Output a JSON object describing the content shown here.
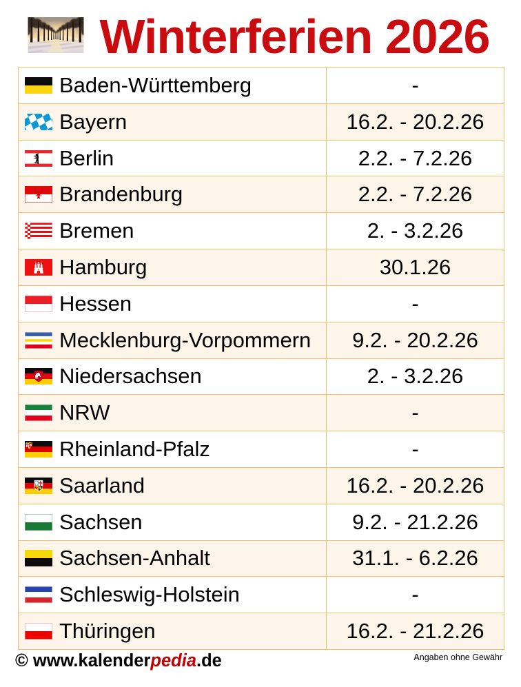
{
  "header": {
    "title": "Winterferien 2026",
    "photo_icon": "winter-tree-avenue-photo"
  },
  "theme": {
    "title_color": "#c90c10",
    "border_color": "#fbbf6d",
    "row_alt_color": "#fdf5e9",
    "text_color": "#000000",
    "pedia_color": "#c00000"
  },
  "table": {
    "rows": [
      {
        "state": "Baden-Württemberg",
        "flag": "baden-wuerttemberg",
        "dates": "-"
      },
      {
        "state": "Bayern",
        "flag": "bayern",
        "dates": "16.2. - 20.2.26"
      },
      {
        "state": "Berlin",
        "flag": "berlin",
        "dates": "2.2. - 7.2.26"
      },
      {
        "state": "Brandenburg",
        "flag": "brandenburg",
        "dates": "2.2. - 7.2.26"
      },
      {
        "state": "Bremen",
        "flag": "bremen",
        "dates": "2. - 3.2.26"
      },
      {
        "state": "Hamburg",
        "flag": "hamburg",
        "dates": "30.1.26"
      },
      {
        "state": "Hessen",
        "flag": "hessen",
        "dates": "-"
      },
      {
        "state": "Mecklenburg-Vorpommern",
        "flag": "mecklenburg-vorpommern",
        "dates": "9.2. - 20.2.26"
      },
      {
        "state": "Niedersachsen",
        "flag": "niedersachsen",
        "dates": "2. - 3.2.26"
      },
      {
        "state": "NRW",
        "flag": "nrw",
        "dates": "-"
      },
      {
        "state": "Rheinland-Pfalz",
        "flag": "rheinland-pfalz",
        "dates": "-"
      },
      {
        "state": "Saarland",
        "flag": "saarland",
        "dates": "16.2. - 20.2.26"
      },
      {
        "state": "Sachsen",
        "flag": "sachsen",
        "dates": "9.2. - 21.2.26"
      },
      {
        "state": "Sachsen-Anhalt",
        "flag": "sachsen-anhalt",
        "dates": "31.1. - 6.2.26"
      },
      {
        "state": "Schleswig-Holstein",
        "flag": "schleswig-holstein",
        "dates": "-"
      },
      {
        "state": "Thüringen",
        "flag": "thueringen",
        "dates": "16.2. - 21.2.26"
      }
    ]
  },
  "footer": {
    "copyright_prefix": "© www.kalender",
    "copyright_highlight": "pedia",
    "copyright_suffix": ".de",
    "disclaimer": "Angaben ohne Gewähr"
  }
}
